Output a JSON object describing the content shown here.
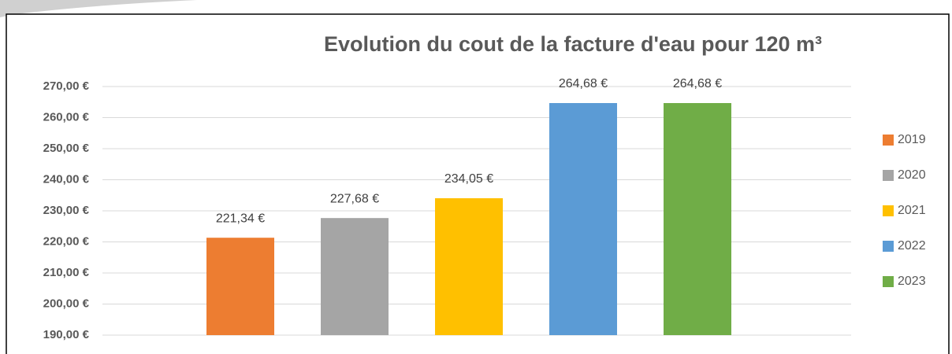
{
  "chart_data": {
    "type": "bar",
    "title": "Evolution du cout de la facture d'eau pour 120 m³",
    "categories": [
      null
    ],
    "series": [
      {
        "name": "2019",
        "color": "#ed7d31",
        "values": [
          221.34
        ],
        "value_labels": [
          "221,34 €"
        ]
      },
      {
        "name": "2020",
        "color": "#a5a5a5",
        "values": [
          227.68
        ],
        "value_labels": [
          "227,68 €"
        ]
      },
      {
        "name": "2021",
        "color": "#ffc000",
        "values": [
          234.05
        ],
        "value_labels": [
          "234,05 €"
        ]
      },
      {
        "name": "2022",
        "color": "#5b9bd5",
        "values": [
          264.68
        ],
        "value_labels": [
          "264,68 €"
        ]
      },
      {
        "name": "2023",
        "color": "#70ad47",
        "values": [
          264.68
        ],
        "value_labels": [
          "264,68 €"
        ]
      }
    ],
    "ylim": [
      190,
      270
    ],
    "yticks": [
      {
        "value": 190,
        "label": "190,00 €"
      },
      {
        "value": 200,
        "label": "200,00 €"
      },
      {
        "value": 210,
        "label": "210,00 €"
      },
      {
        "value": 220,
        "label": "220,00 €"
      },
      {
        "value": 230,
        "label": "230,00 €"
      },
      {
        "value": 240,
        "label": "240,00 €"
      },
      {
        "value": 250,
        "label": "250,00 €"
      },
      {
        "value": 260,
        "label": "260,00 €"
      },
      {
        "value": 270,
        "label": "270,00 €"
      }
    ],
    "grid": true,
    "legend": "right"
  }
}
